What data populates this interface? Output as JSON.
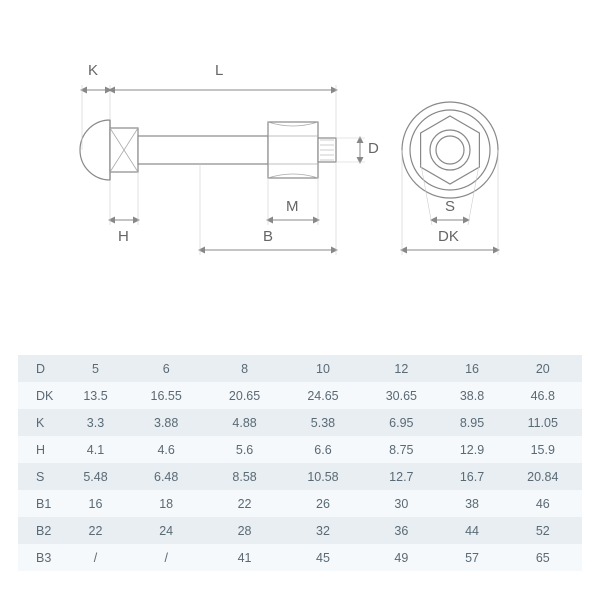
{
  "diagram": {
    "labels": {
      "K": "K",
      "L": "L",
      "H": "H",
      "M": "M",
      "B": "B",
      "D": "D",
      "S": "S",
      "DK": "DK"
    },
    "stroke_color": "#888888",
    "stroke_width": 1.2,
    "fill_color": "#ffffff"
  },
  "table": {
    "row_bg_odd": "#e8eef2",
    "row_bg_even": "#f6f9fb",
    "text_color": "#5a6a75",
    "font_size": 12.5,
    "columns": [
      "",
      "5",
      "6",
      "8",
      "10",
      "12",
      "16",
      "20"
    ],
    "rows": [
      [
        "D",
        "5",
        "6",
        "8",
        "10",
        "12",
        "16",
        "20"
      ],
      [
        "DK",
        "13.5",
        "16.55",
        "20.65",
        "24.65",
        "30.65",
        "38.8",
        "46.8"
      ],
      [
        "K",
        "3.3",
        "3.88",
        "4.88",
        "5.38",
        "6.95",
        "8.95",
        "11.05"
      ],
      [
        "H",
        "4.1",
        "4.6",
        "5.6",
        "6.6",
        "8.75",
        "12.9",
        "15.9"
      ],
      [
        "S",
        "5.48",
        "6.48",
        "8.58",
        "10.58",
        "12.7",
        "16.7",
        "20.84"
      ],
      [
        "B1",
        "16",
        "18",
        "22",
        "26",
        "30",
        "38",
        "46"
      ],
      [
        "B2",
        "22",
        "24",
        "28",
        "32",
        "36",
        "44",
        "52"
      ],
      [
        "B3",
        "/",
        "/",
        "41",
        "45",
        "49",
        "57",
        "65"
      ]
    ]
  }
}
